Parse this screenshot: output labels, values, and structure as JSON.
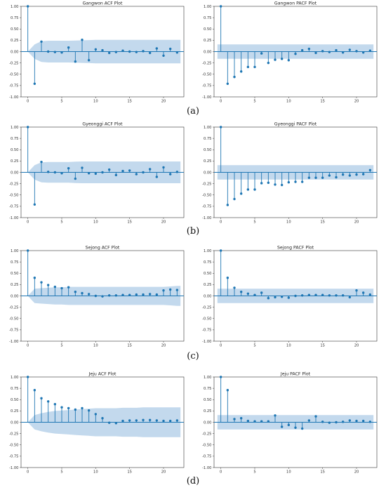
{
  "figure": {
    "caption_labels": [
      "(a)",
      "(b)",
      "(c)",
      "(d)"
    ]
  },
  "chart_data": [
    {
      "type": "stem",
      "title": "Gangwon ACF Plot",
      "band_kind": "acf",
      "xlim": [
        -1,
        23
      ],
      "ylim": [
        -1.0,
        1.0
      ],
      "xticks": [
        0,
        5,
        10,
        15,
        20
      ],
      "yticks": [
        -1.0,
        -0.75,
        -0.5,
        -0.25,
        0.0,
        0.25,
        0.5,
        0.75,
        1.0
      ],
      "lags": [
        0,
        1,
        2,
        3,
        4,
        5,
        6,
        7,
        8,
        9,
        10,
        11,
        12,
        13,
        14,
        15,
        16,
        17,
        18,
        19,
        20,
        21,
        22
      ],
      "values": [
        1.0,
        -0.71,
        0.22,
        0.0,
        -0.01,
        -0.02,
        0.09,
        -0.22,
        0.26,
        -0.19,
        0.05,
        0.03,
        -0.03,
        -0.01,
        0.02,
        0.0,
        -0.01,
        0.01,
        -0.03,
        0.07,
        -0.09,
        0.06,
        -0.02
      ],
      "confidence": [
        0.0,
        0.16,
        0.23,
        0.24,
        0.24,
        0.24,
        0.24,
        0.245,
        0.25,
        0.255,
        0.26,
        0.26,
        0.26,
        0.26,
        0.26,
        0.26,
        0.26,
        0.26,
        0.26,
        0.26,
        0.26,
        0.26,
        0.26
      ],
      "colors": {
        "stem": "#1f77b4",
        "band": "#b8d2ea",
        "zero_line": "#1f77b4"
      }
    },
    {
      "type": "stem",
      "title": "Gangwon PACF Plot",
      "band_kind": "pacf",
      "xlim": [
        -1,
        23
      ],
      "ylim": [
        -1.0,
        1.0
      ],
      "xticks": [
        0,
        5,
        10,
        15,
        20
      ],
      "yticks": [
        -1.0,
        -0.75,
        -0.5,
        -0.25,
        0.0,
        0.25,
        0.5,
        0.75,
        1.0
      ],
      "lags": [
        0,
        1,
        2,
        3,
        4,
        5,
        6,
        7,
        8,
        9,
        10,
        11,
        12,
        13,
        14,
        15,
        16,
        17,
        18,
        19,
        20,
        21,
        22
      ],
      "values": [
        1.0,
        -0.71,
        -0.56,
        -0.44,
        -0.34,
        -0.34,
        -0.04,
        -0.25,
        -0.18,
        -0.16,
        -0.19,
        -0.05,
        0.03,
        0.06,
        -0.03,
        0.01,
        -0.01,
        0.03,
        -0.02,
        0.04,
        0.01,
        -0.02,
        0.02
      ],
      "confidence": [
        0.16,
        0.16,
        0.16,
        0.16,
        0.16,
        0.16,
        0.16,
        0.16,
        0.16,
        0.16,
        0.16,
        0.16,
        0.16,
        0.16,
        0.16,
        0.16,
        0.16,
        0.16,
        0.16,
        0.16,
        0.16,
        0.16,
        0.16
      ],
      "colors": {
        "stem": "#1f77b4",
        "band": "#b8d2ea",
        "zero_line": "#1f77b4"
      }
    },
    {
      "type": "stem",
      "title": "Gyeonggi ACF Plot",
      "band_kind": "acf",
      "xlim": [
        -1,
        23
      ],
      "ylim": [
        -1.0,
        1.0
      ],
      "xticks": [
        0,
        5,
        10,
        15,
        20
      ],
      "yticks": [
        -1.0,
        -0.75,
        -0.5,
        -0.25,
        0.0,
        0.25,
        0.5,
        0.75,
        1.0
      ],
      "lags": [
        0,
        1,
        2,
        3,
        4,
        5,
        6,
        7,
        8,
        9,
        10,
        11,
        12,
        13,
        14,
        15,
        16,
        17,
        18,
        19,
        20,
        21,
        22
      ],
      "values": [
        1.0,
        -0.71,
        0.23,
        0.01,
        0.0,
        -0.02,
        0.09,
        -0.14,
        0.1,
        -0.02,
        -0.03,
        0.0,
        0.06,
        -0.06,
        0.03,
        0.04,
        -0.04,
        0.0,
        0.07,
        -0.1,
        0.11,
        -0.04,
        0.01
      ],
      "confidence": [
        0.0,
        0.16,
        0.22,
        0.23,
        0.23,
        0.23,
        0.23,
        0.235,
        0.24,
        0.24,
        0.24,
        0.24,
        0.24,
        0.24,
        0.24,
        0.24,
        0.24,
        0.24,
        0.24,
        0.24,
        0.24,
        0.24,
        0.24
      ],
      "colors": {
        "stem": "#1f77b4",
        "band": "#b8d2ea",
        "zero_line": "#1f77b4"
      }
    },
    {
      "type": "stem",
      "title": "Gyeonggi PACF Plot",
      "band_kind": "pacf",
      "xlim": [
        -1,
        23
      ],
      "ylim": [
        -1.0,
        1.0
      ],
      "xticks": [
        0,
        5,
        10,
        15,
        20
      ],
      "yticks": [
        -1.0,
        -0.75,
        -0.5,
        -0.25,
        0.0,
        0.25,
        0.5,
        0.75,
        1.0
      ],
      "lags": [
        0,
        1,
        2,
        3,
        4,
        5,
        6,
        7,
        8,
        9,
        10,
        11,
        12,
        13,
        14,
        15,
        16,
        17,
        18,
        19,
        20,
        21,
        22
      ],
      "values": [
        1.0,
        -0.72,
        -0.59,
        -0.47,
        -0.38,
        -0.38,
        -0.24,
        -0.23,
        -0.27,
        -0.28,
        -0.22,
        -0.21,
        -0.21,
        -0.12,
        -0.12,
        -0.12,
        -0.07,
        -0.11,
        -0.05,
        -0.07,
        -0.05,
        -0.04,
        0.05
      ],
      "confidence": [
        0.16,
        0.16,
        0.16,
        0.16,
        0.16,
        0.16,
        0.16,
        0.16,
        0.16,
        0.16,
        0.16,
        0.16,
        0.16,
        0.16,
        0.16,
        0.16,
        0.16,
        0.16,
        0.16,
        0.16,
        0.16,
        0.16,
        0.16
      ],
      "colors": {
        "stem": "#1f77b4",
        "band": "#b8d2ea",
        "zero_line": "#1f77b4"
      }
    },
    {
      "type": "stem",
      "title": "Sejong ACF Plot",
      "band_kind": "acf",
      "xlim": [
        -1,
        23
      ],
      "ylim": [
        -1.0,
        1.0
      ],
      "xticks": [
        0,
        5,
        10,
        15,
        20
      ],
      "yticks": [
        -1.0,
        -0.75,
        -0.5,
        -0.25,
        0.0,
        0.25,
        0.5,
        0.75,
        1.0
      ],
      "lags": [
        0,
        1,
        2,
        3,
        4,
        5,
        6,
        7,
        8,
        9,
        10,
        11,
        12,
        13,
        14,
        15,
        16,
        17,
        18,
        19,
        20,
        21,
        22
      ],
      "values": [
        1.0,
        0.4,
        0.3,
        0.24,
        0.2,
        0.17,
        0.19,
        0.09,
        0.06,
        0.04,
        0.0,
        -0.01,
        0.01,
        0.01,
        0.02,
        0.02,
        0.03,
        0.03,
        0.04,
        0.03,
        0.12,
        0.14,
        0.13
      ],
      "confidence": [
        0.0,
        0.16,
        0.17,
        0.18,
        0.19,
        0.19,
        0.2,
        0.2,
        0.2,
        0.2,
        0.2,
        0.2,
        0.2,
        0.2,
        0.2,
        0.2,
        0.2,
        0.2,
        0.2,
        0.2,
        0.2,
        0.21,
        0.22
      ],
      "colors": {
        "stem": "#1f77b4",
        "band": "#b8d2ea",
        "zero_line": "#1f77b4"
      }
    },
    {
      "type": "stem",
      "title": "Sejong PACF Plot",
      "band_kind": "pacf",
      "xlim": [
        -1,
        23
      ],
      "ylim": [
        -1.0,
        1.0
      ],
      "xticks": [
        0,
        5,
        10,
        15,
        20
      ],
      "yticks": [
        -1.0,
        -0.75,
        -0.5,
        -0.25,
        0.0,
        0.25,
        0.5,
        0.75,
        1.0
      ],
      "lags": [
        0,
        1,
        2,
        3,
        4,
        5,
        6,
        7,
        8,
        9,
        10,
        11,
        12,
        13,
        14,
        15,
        16,
        17,
        18,
        19,
        20,
        21,
        22
      ],
      "values": [
        1.0,
        0.4,
        0.18,
        0.09,
        0.05,
        0.02,
        0.07,
        -0.05,
        -0.03,
        -0.02,
        -0.04,
        0.0,
        0.01,
        0.02,
        0.02,
        0.02,
        0.01,
        0.01,
        0.01,
        -0.03,
        0.12,
        0.07,
        0.03
      ],
      "confidence": [
        0.16,
        0.16,
        0.16,
        0.16,
        0.16,
        0.16,
        0.16,
        0.16,
        0.16,
        0.16,
        0.16,
        0.16,
        0.16,
        0.16,
        0.16,
        0.16,
        0.16,
        0.16,
        0.16,
        0.16,
        0.16,
        0.16,
        0.16
      ],
      "colors": {
        "stem": "#1f77b4",
        "band": "#b8d2ea",
        "zero_line": "#1f77b4"
      }
    },
    {
      "type": "stem",
      "title": "Jeju ACF Plot",
      "band_kind": "acf",
      "xlim": [
        -1,
        23
      ],
      "ylim": [
        -1.0,
        1.0
      ],
      "xticks": [
        0,
        5,
        10,
        15,
        20
      ],
      "yticks": [
        -1.0,
        -0.75,
        -0.5,
        -0.25,
        0.0,
        0.25,
        0.5,
        0.75,
        1.0
      ],
      "lags": [
        0,
        1,
        2,
        3,
        4,
        5,
        6,
        7,
        8,
        9,
        10,
        11,
        12,
        13,
        14,
        15,
        16,
        17,
        18,
        19,
        20,
        21,
        22
      ],
      "values": [
        1.0,
        0.71,
        0.53,
        0.46,
        0.4,
        0.33,
        0.31,
        0.28,
        0.31,
        0.26,
        0.18,
        0.09,
        -0.01,
        -0.02,
        0.03,
        0.04,
        0.04,
        0.05,
        0.05,
        0.04,
        0.03,
        0.03,
        0.04
      ],
      "confidence": [
        0.0,
        0.16,
        0.2,
        0.23,
        0.25,
        0.26,
        0.27,
        0.28,
        0.29,
        0.3,
        0.31,
        0.31,
        0.31,
        0.31,
        0.32,
        0.32,
        0.32,
        0.33,
        0.33,
        0.33,
        0.33,
        0.33,
        0.33
      ],
      "colors": {
        "stem": "#1f77b4",
        "band": "#b8d2ea",
        "zero_line": "#1f77b4"
      }
    },
    {
      "type": "stem",
      "title": "Jeju PACF Plot",
      "band_kind": "pacf",
      "xlim": [
        -1,
        23
      ],
      "ylim": [
        -1.0,
        1.0
      ],
      "xticks": [
        0,
        5,
        10,
        15,
        20
      ],
      "yticks": [
        -1.0,
        -0.75,
        -0.5,
        -0.25,
        0.0,
        0.25,
        0.5,
        0.75,
        1.0
      ],
      "lags": [
        0,
        1,
        2,
        3,
        4,
        5,
        6,
        7,
        8,
        9,
        10,
        11,
        12,
        13,
        14,
        15,
        16,
        17,
        18,
        19,
        20,
        21,
        22
      ],
      "values": [
        1.0,
        0.71,
        0.07,
        0.09,
        0.03,
        0.02,
        0.02,
        0.02,
        0.15,
        -0.1,
        -0.06,
        -0.12,
        -0.14,
        0.04,
        0.13,
        0.01,
        -0.01,
        0.0,
        0.01,
        0.04,
        0.03,
        0.03,
        0.01
      ],
      "confidence": [
        0.16,
        0.16,
        0.16,
        0.16,
        0.16,
        0.16,
        0.16,
        0.16,
        0.16,
        0.16,
        0.16,
        0.16,
        0.16,
        0.16,
        0.16,
        0.16,
        0.16,
        0.16,
        0.16,
        0.16,
        0.16,
        0.16,
        0.16
      ],
      "colors": {
        "stem": "#1f77b4",
        "band": "#b8d2ea",
        "zero_line": "#1f77b4"
      }
    }
  ]
}
